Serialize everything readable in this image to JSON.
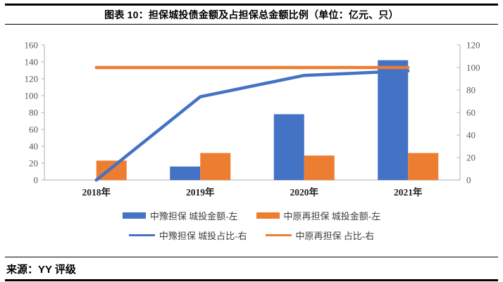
{
  "header": {
    "title": "图表 10：担保城投债金额及占担保总金额比例（单位：亿元、只）"
  },
  "footer": {
    "source": "来源：YY 评级"
  },
  "colors": {
    "blue": "#4472C4",
    "orange": "#ED7D31",
    "axis_line": "#BFBFBF",
    "axis_tick_text": "#595959",
    "category_text": "#1f1f1f",
    "legend_text": "#3d3d3d"
  },
  "chart_data": {
    "type": "bar",
    "subtype": "bar-line-combo",
    "categories": [
      "2018年",
      "2019年",
      "2020年",
      "2021年"
    ],
    "series": [
      {
        "name": "中豫担保 城投金额-左",
        "type": "bar",
        "axis": "left",
        "color": "#4472C4",
        "values": [
          0,
          16,
          78,
          142
        ]
      },
      {
        "name": "中原再担保 城投金额-左",
        "type": "bar",
        "axis": "left",
        "color": "#ED7D31",
        "values": [
          23,
          32,
          29,
          32
        ]
      },
      {
        "name": "中豫担保 城投占比-右",
        "type": "line",
        "axis": "right",
        "color": "#4472C4",
        "values": [
          0,
          74,
          93,
          97
        ]
      },
      {
        "name": "中原再担保 占比-右",
        "type": "line",
        "axis": "right",
        "color": "#ED7D31",
        "values": [
          100,
          100,
          100,
          100
        ]
      }
    ],
    "left_axis": {
      "min": 0,
      "max": 160,
      "step": 20,
      "tick_labels": [
        "0",
        "20",
        "40",
        "60",
        "80",
        "100",
        "120",
        "140",
        "160"
      ]
    },
    "right_axis": {
      "min": 0,
      "max": 120,
      "step": 20,
      "tick_labels": [
        "0",
        "20",
        "40",
        "60",
        "80",
        "100",
        "120"
      ]
    },
    "grid": false,
    "legend_position": "bottom",
    "title": "图表 10：担保城投债金额及占担保总金额比例（单位：亿元、只）"
  }
}
